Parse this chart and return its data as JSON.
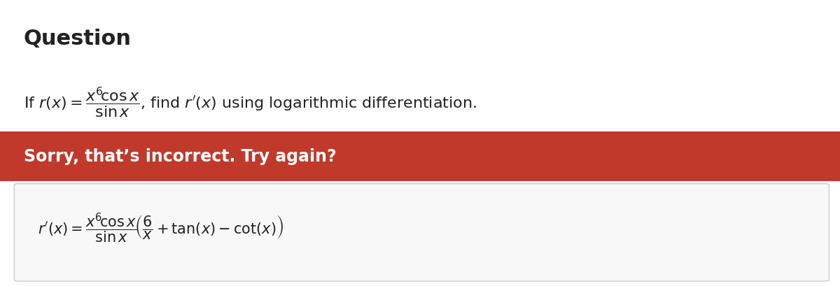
{
  "bg_color": "#ffffff",
  "title_text": "Question",
  "title_fontsize": 22,
  "title_fontweight": "bold",
  "title_color": "#222222",
  "question_fontsize": 16,
  "question_color": "#222222",
  "banner_color": "#c0392b",
  "banner_text": "Sorry, that’s incorrect. Try again?",
  "banner_text_color": "#ffffff",
  "banner_text_fontsize": 17,
  "banner_text_fontweight": "bold",
  "answer_fontsize": 15,
  "answer_color": "#222222",
  "outer_box_color": "#cccccc",
  "inner_box_color": "#555555"
}
